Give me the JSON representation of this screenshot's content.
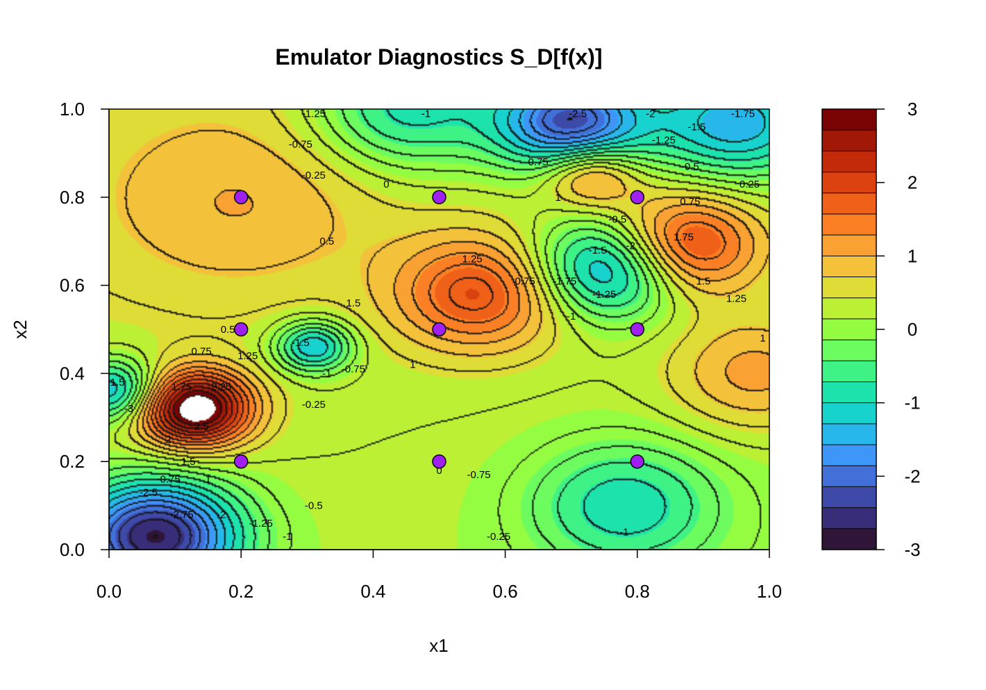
{
  "chart_data": {
    "type": "heatmap",
    "subtype": "filled-contour",
    "title": "Emulator Diagnostics S_D[f(x)]",
    "xlabel": "x1",
    "ylabel": "x2",
    "xlim": [
      0,
      1
    ],
    "ylim": [
      0,
      1
    ],
    "x_ticks": [
      "0.0",
      "0.2",
      "0.4",
      "0.6",
      "0.8",
      "1.0"
    ],
    "y_ticks": [
      "0.0",
      "0.2",
      "0.4",
      "0.6",
      "0.8",
      "1.0"
    ],
    "colorbar": {
      "range": [
        -3,
        3
      ],
      "step": 0.25,
      "ticks": [
        "-3",
        "-2",
        "-1",
        "0",
        "1",
        "2",
        "3"
      ],
      "colors": [
        "#2f1537",
        "#382d78",
        "#3e4aa8",
        "#4170d9",
        "#3e96f8",
        "#27b7ea",
        "#18d2cd",
        "#1ee2ac",
        "#3ef286",
        "#6cfc60",
        "#94fd41",
        "#bbf035",
        "#dfdb37",
        "#f4c13a",
        "#f9a132",
        "#fb8025",
        "#ef6019",
        "#dc4210",
        "#c22a0a",
        "#a11906",
        "#7a0403"
      ]
    },
    "design_points": [
      {
        "x": 0.2,
        "y": 0.8
      },
      {
        "x": 0.5,
        "y": 0.8
      },
      {
        "x": 0.8,
        "y": 0.8
      },
      {
        "x": 0.2,
        "y": 0.5
      },
      {
        "x": 0.5,
        "y": 0.5
      },
      {
        "x": 0.8,
        "y": 0.5
      },
      {
        "x": 0.2,
        "y": 0.2
      },
      {
        "x": 0.5,
        "y": 0.2
      },
      {
        "x": 0.8,
        "y": 0.2
      }
    ],
    "point_color": "#a020f0",
    "surface_peaks": [
      {
        "x": 0.7,
        "y": 0.97,
        "value": -2.6,
        "radius": 0.08
      },
      {
        "x": 0.73,
        "y": 0.85,
        "value": 1.3,
        "radius": 0.05
      },
      {
        "x": 0.45,
        "y": 1.0,
        "value": -1.3,
        "radius": 0.1
      },
      {
        "x": 0.95,
        "y": 0.97,
        "value": -1.8,
        "radius": 0.09
      },
      {
        "x": 0.87,
        "y": 0.69,
        "value": 1.9,
        "radius": 0.08
      },
      {
        "x": 0.76,
        "y": 0.64,
        "value": -2.0,
        "radius": 0.08
      },
      {
        "x": 0.56,
        "y": 0.58,
        "value": 1.6,
        "radius": 0.09
      },
      {
        "x": 0.31,
        "y": 0.46,
        "value": -1.6,
        "radius": 0.04
      },
      {
        "x": 0.13,
        "y": 0.32,
        "value": 3.1,
        "radius": 0.06
      },
      {
        "x": 0.07,
        "y": 0.03,
        "value": -3.0,
        "radius": 0.09
      },
      {
        "x": 0.01,
        "y": 0.36,
        "value": -1.7,
        "radius": 0.05
      },
      {
        "x": 0.78,
        "y": 0.1,
        "value": -1.1,
        "radius": 0.1
      },
      {
        "x": 0.2,
        "y": 0.78,
        "value": 0.6,
        "radius": 0.15
      },
      {
        "x": 0.98,
        "y": 0.4,
        "value": 0.9,
        "radius": 0.09
      }
    ],
    "contour_labels": [
      {
        "x": 0.31,
        "y": 0.99,
        "text": "-1.25"
      },
      {
        "x": 0.48,
        "y": 0.99,
        "text": "-1"
      },
      {
        "x": 0.29,
        "y": 0.92,
        "text": "-0.75"
      },
      {
        "x": 0.31,
        "y": 0.85,
        "text": "-0.25"
      },
      {
        "x": 0.42,
        "y": 0.83,
        "text": "0"
      },
      {
        "x": 0.33,
        "y": 0.7,
        "text": "0.5"
      },
      {
        "x": 0.71,
        "y": 0.99,
        "text": "-2.5"
      },
      {
        "x": 0.82,
        "y": 0.99,
        "text": "-2"
      },
      {
        "x": 0.96,
        "y": 0.99,
        "text": "-1.75"
      },
      {
        "x": 0.89,
        "y": 0.96,
        "text": "-1.5"
      },
      {
        "x": 0.84,
        "y": 0.93,
        "text": "-1.25"
      },
      {
        "x": 0.88,
        "y": 0.87,
        "text": "-0.5"
      },
      {
        "x": 0.97,
        "y": 0.83,
        "text": "0.25"
      },
      {
        "x": 0.65,
        "y": 0.88,
        "text": "0.75"
      },
      {
        "x": 0.68,
        "y": 0.8,
        "text": "1"
      },
      {
        "x": 0.88,
        "y": 0.79,
        "text": "0.75"
      },
      {
        "x": 0.87,
        "y": 0.71,
        "text": "1.75"
      },
      {
        "x": 0.74,
        "y": 0.68,
        "text": "-1.5"
      },
      {
        "x": 0.79,
        "y": 0.69,
        "text": "-2"
      },
      {
        "x": 0.77,
        "y": 0.75,
        "text": "-0.5"
      },
      {
        "x": 0.55,
        "y": 0.66,
        "text": "1.25"
      },
      {
        "x": 0.69,
        "y": 0.61,
        "text": "-1.75"
      },
      {
        "x": 0.75,
        "y": 0.58,
        "text": "-1.25"
      },
      {
        "x": 0.7,
        "y": 0.53,
        "text": "-1"
      },
      {
        "x": 0.63,
        "y": 0.61,
        "text": "0.75"
      },
      {
        "x": 0.9,
        "y": 0.61,
        "text": "1.5"
      },
      {
        "x": 0.95,
        "y": 0.57,
        "text": "1.25"
      },
      {
        "x": 0.99,
        "y": 0.48,
        "text": "1"
      },
      {
        "x": 0.37,
        "y": 0.56,
        "text": "1.5"
      },
      {
        "x": 0.46,
        "y": 0.42,
        "text": "1"
      },
      {
        "x": 0.29,
        "y": 0.47,
        "text": "-1.5"
      },
      {
        "x": 0.33,
        "y": 0.4,
        "text": "-1"
      },
      {
        "x": 0.37,
        "y": 0.41,
        "text": "-0.75"
      },
      {
        "x": 0.31,
        "y": 0.33,
        "text": "-0.25"
      },
      {
        "x": 0.18,
        "y": 0.5,
        "text": "0.5"
      },
      {
        "x": 0.14,
        "y": 0.45,
        "text": "0.75"
      },
      {
        "x": 0.21,
        "y": 0.44,
        "text": "1.25"
      },
      {
        "x": 0.11,
        "y": 0.37,
        "text": "1.75"
      },
      {
        "x": 0.17,
        "y": 0.37,
        "text": "2.25"
      },
      {
        "x": 0.14,
        "y": 0.28,
        "text": "2.5"
      },
      {
        "x": 0.09,
        "y": 0.25,
        "text": "2"
      },
      {
        "x": 0.12,
        "y": 0.2,
        "text": "1.5"
      },
      {
        "x": 0.15,
        "y": 0.16,
        "text": "1"
      },
      {
        "x": 0.09,
        "y": 0.16,
        "text": "-0.75"
      },
      {
        "x": 0.06,
        "y": 0.13,
        "text": "-2.5"
      },
      {
        "x": 0.11,
        "y": 0.08,
        "text": "-2.75"
      },
      {
        "x": 0.17,
        "y": 0.08,
        "text": "-2"
      },
      {
        "x": 0.23,
        "y": 0.06,
        "text": "-1.25"
      },
      {
        "x": 0.27,
        "y": 0.03,
        "text": "-1"
      },
      {
        "x": 0.31,
        "y": 0.1,
        "text": "-0.5"
      },
      {
        "x": 0.01,
        "y": 0.38,
        "text": "-1.5"
      },
      {
        "x": 0.03,
        "y": 0.32,
        "text": "-3"
      },
      {
        "x": 0.5,
        "y": 0.18,
        "text": "0"
      },
      {
        "x": 0.56,
        "y": 0.17,
        "text": "-0.75"
      },
      {
        "x": 0.59,
        "y": 0.03,
        "text": "-0.25"
      },
      {
        "x": 0.78,
        "y": 0.04,
        "text": "-1"
      }
    ]
  }
}
